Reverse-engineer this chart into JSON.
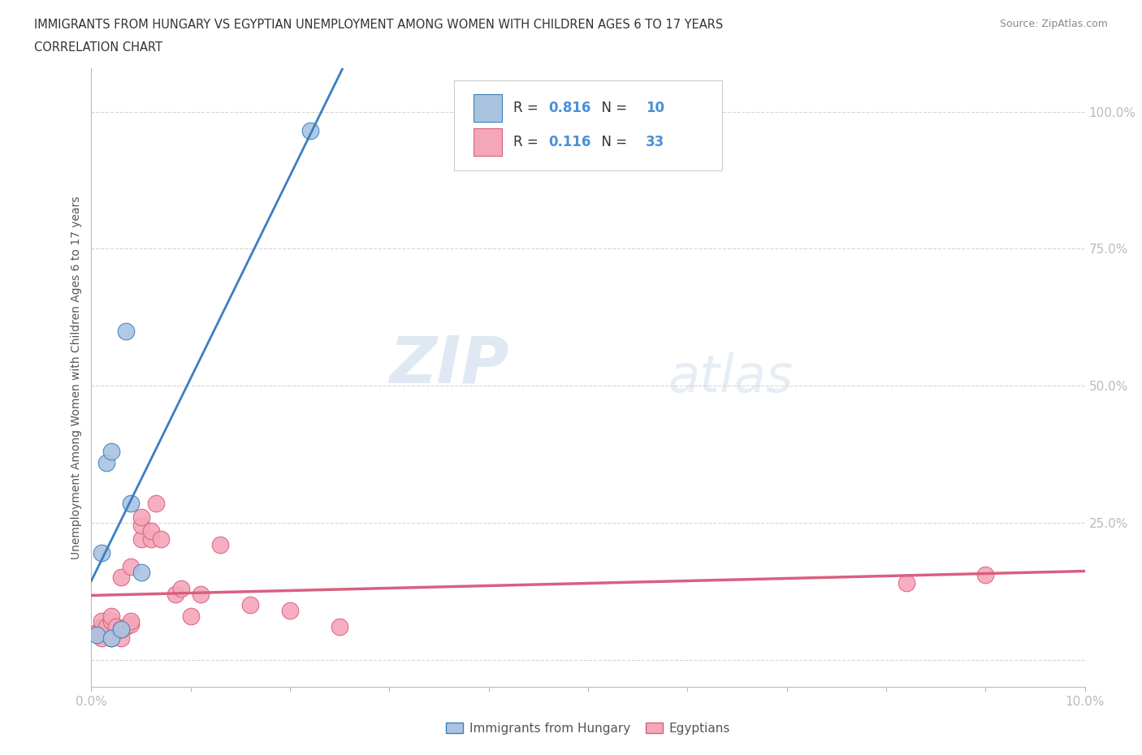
{
  "title_line1": "IMMIGRANTS FROM HUNGARY VS EGYPTIAN UNEMPLOYMENT AMONG WOMEN WITH CHILDREN AGES 6 TO 17 YEARS",
  "title_line2": "CORRELATION CHART",
  "source": "Source: ZipAtlas.com",
  "ylabel": "Unemployment Among Women with Children Ages 6 to 17 years",
  "xlim": [
    0.0,
    0.1
  ],
  "ylim": [
    -0.05,
    1.08
  ],
  "xticks": [
    0.0,
    0.01,
    0.02,
    0.03,
    0.04,
    0.05,
    0.06,
    0.07,
    0.08,
    0.09,
    0.1
  ],
  "xtick_labels": [
    "0.0%",
    "",
    "",
    "",
    "",
    "",
    "",
    "",
    "",
    "",
    "10.0%"
  ],
  "yticks": [
    0.0,
    0.25,
    0.5,
    0.75,
    1.0
  ],
  "ytick_labels": [
    "",
    "25.0%",
    "50.0%",
    "75.0%",
    "100.0%"
  ],
  "hungary_x": [
    0.0005,
    0.001,
    0.0015,
    0.002,
    0.002,
    0.003,
    0.0035,
    0.004,
    0.005,
    0.022
  ],
  "hungary_y": [
    0.045,
    0.195,
    0.36,
    0.38,
    0.04,
    0.055,
    0.6,
    0.285,
    0.16,
    0.965
  ],
  "egypt_x": [
    0.0005,
    0.001,
    0.001,
    0.001,
    0.0015,
    0.002,
    0.002,
    0.002,
    0.0025,
    0.003,
    0.003,
    0.003,
    0.0035,
    0.004,
    0.004,
    0.004,
    0.005,
    0.005,
    0.005,
    0.006,
    0.006,
    0.0065,
    0.007,
    0.0085,
    0.009,
    0.01,
    0.011,
    0.013,
    0.016,
    0.02,
    0.025,
    0.082,
    0.09
  ],
  "egypt_y": [
    0.05,
    0.04,
    0.06,
    0.07,
    0.06,
    0.04,
    0.07,
    0.08,
    0.06,
    0.04,
    0.055,
    0.15,
    0.06,
    0.065,
    0.07,
    0.17,
    0.22,
    0.245,
    0.26,
    0.22,
    0.235,
    0.285,
    0.22,
    0.12,
    0.13,
    0.08,
    0.12,
    0.21,
    0.1,
    0.09,
    0.06,
    0.14,
    0.155
  ],
  "hungary_color": "#aac4e0",
  "egypt_color": "#f4a7b9",
  "hungary_line_color": "#3a7fc1",
  "egypt_line_color": "#d96080",
  "hungary_R": "0.816",
  "hungary_N": "10",
  "egypt_R": "0.116",
  "egypt_N": "33",
  "watermark_zip": "ZIP",
  "watermark_atlas": "atlas",
  "legend_hungary": "Immigrants from Hungary",
  "legend_egypt": "Egyptians",
  "background_color": "#ffffff",
  "grid_color": "#cccccc",
  "title_color": "#333333",
  "axis_label_color": "#555555",
  "tick_color": "#4a90d9",
  "rn_label_color": "#333333",
  "source_color": "#888888"
}
